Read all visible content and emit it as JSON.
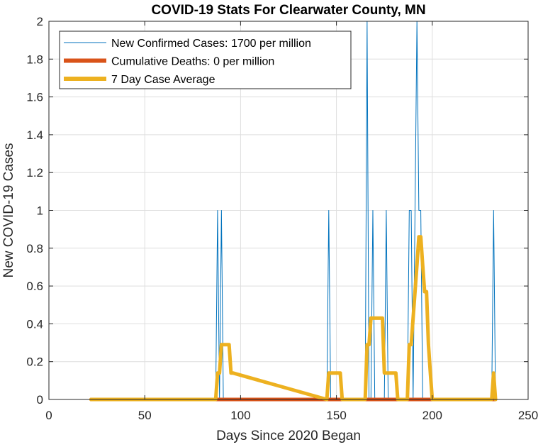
{
  "chart_data": {
    "type": "line",
    "title": "COVID-19 Stats For Clearwater County, MN",
    "xlabel": "Days Since 2020 Began",
    "ylabel": "New COVID-19 Cases",
    "xlim": [
      0,
      250
    ],
    "ylim": [
      0,
      2
    ],
    "xticks": [
      0,
      50,
      100,
      150,
      200,
      250
    ],
    "xtick_labels": [
      "0",
      "50",
      "100",
      "150",
      "200",
      "250"
    ],
    "yticks": [
      0,
      0.2,
      0.4,
      0.6,
      0.8,
      1,
      1.2,
      1.4,
      1.6,
      1.8,
      2
    ],
    "ytick_labels": [
      "0",
      "0.2",
      "0.4",
      "0.6",
      "0.8",
      "1",
      "1.2",
      "1.4",
      "1.6",
      "1.8",
      "2"
    ],
    "grid": true,
    "legend_position": "top-left",
    "series": [
      {
        "name": "New Confirmed Cases: 1700 per million",
        "color": "#0072BD",
        "line_width": "thin",
        "x": [
          22,
          87,
          88,
          89,
          90,
          91,
          145,
          146,
          147,
          165,
          166,
          167,
          168,
          169,
          170,
          175,
          176,
          177,
          187,
          188,
          189,
          190,
          191,
          192,
          193,
          194,
          195,
          231,
          232,
          233
        ],
        "y": [
          0,
          0,
          1,
          0,
          1,
          0,
          0,
          1,
          0,
          0,
          2,
          0,
          0,
          1,
          0,
          0,
          1,
          0,
          0,
          1,
          1,
          0,
          1,
          2,
          1,
          1,
          0,
          0,
          1,
          0
        ]
      },
      {
        "name": "Cumulative Deaths: 0 per million",
        "color": "#D95319",
        "line_width": "thick",
        "x": [
          22,
          233
        ],
        "y": [
          0,
          0
        ]
      },
      {
        "name": "7 Day Case Average",
        "color": "#EDB120",
        "line_width": "thick",
        "x": [
          22,
          87,
          88,
          89,
          90,
          94,
          95,
          96,
          145,
          146,
          152,
          153,
          165,
          166,
          167,
          168,
          174,
          175,
          181,
          182,
          187,
          188,
          189,
          190,
          191,
          192,
          193,
          194,
          195,
          196,
          197,
          198,
          199,
          200,
          201,
          231,
          232,
          233
        ],
        "y": [
          0,
          0,
          0.14,
          0.14,
          0.29,
          0.29,
          0.14,
          0.14,
          0,
          0.14,
          0.14,
          0,
          0,
          0.29,
          0.29,
          0.43,
          0.43,
          0.14,
          0.14,
          0,
          0,
          0.29,
          0.29,
          0.43,
          0.57,
          0.71,
          0.86,
          0.86,
          0.71,
          0.57,
          0.57,
          0.29,
          0.14,
          0,
          0,
          0,
          0.14,
          0
        ]
      }
    ]
  }
}
